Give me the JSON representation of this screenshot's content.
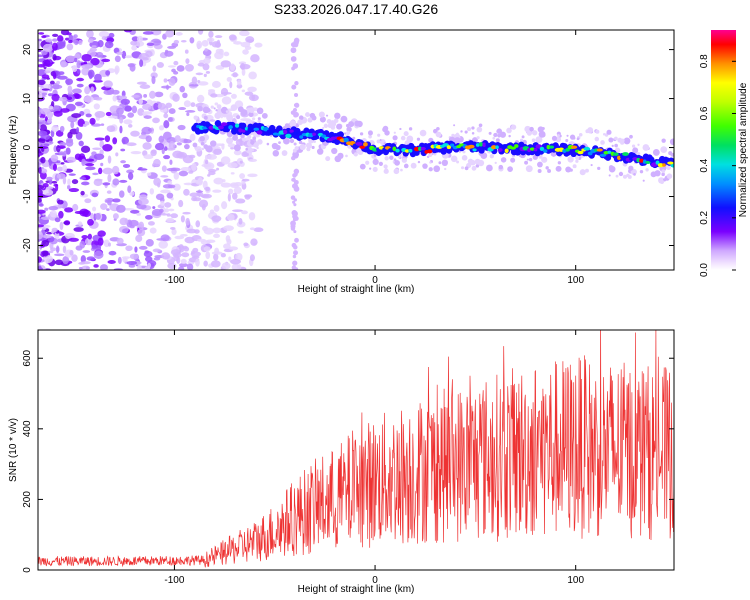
{
  "title": "S233.2026.047.17.40.G26",
  "chart_data": [
    {
      "type": "heatmap",
      "xlabel": "Height of straight line (km)",
      "ylabel": "Frequency (Hz)",
      "xlim": [
        -168,
        149
      ],
      "ylim": [
        -25,
        24
      ],
      "xticks": [
        -100,
        0,
        100
      ],
      "xtick_labels": [
        "-100",
        "0",
        "100"
      ],
      "yticks": [
        -20,
        -10,
        0,
        10,
        20
      ],
      "ytick_labels": [
        "-20",
        "-10",
        "0",
        "10",
        "20"
      ],
      "colorbar": {
        "label": "Normalized spectral amplitude",
        "range": [
          0.0,
          0.92
        ],
        "ticks": [
          0.0,
          0.2,
          0.4,
          0.6,
          0.8
        ],
        "tick_labels": [
          "0.0",
          "0.2",
          "0.4",
          "0.6",
          "0.8"
        ]
      },
      "ridge": {
        "description_points_km": [
          -90,
          -75,
          -60,
          -45,
          -30,
          -15,
          0,
          20,
          40,
          60,
          80,
          100,
          120,
          140,
          149
        ],
        "frequency_hz": [
          4,
          4.2,
          3.8,
          3,
          2.5,
          1.8,
          -0.5,
          -0.5,
          0.2,
          0,
          -0.3,
          -0.5,
          -1.5,
          -3,
          -3.2
        ]
      }
    },
    {
      "type": "line",
      "xlabel": "Height of straight line (km)",
      "ylabel": "SNR (10 * v/v)",
      "xlim": [
        -168,
        149
      ],
      "ylim": [
        0,
        680
      ],
      "xticks": [
        -100,
        0,
        100
      ],
      "xtick_labels": [
        "-100",
        "0",
        "100"
      ],
      "yticks": [
        0,
        200,
        400,
        600
      ],
      "ytick_labels": [
        "0",
        "200",
        "400",
        "600"
      ],
      "color": "#ee3333",
      "envelope": {
        "x": [
          -168,
          -120,
          -85,
          -75,
          -60,
          -50,
          -40,
          -30,
          -20,
          -10,
          0,
          20,
          40,
          60,
          80,
          100,
          120,
          149
        ],
        "y": [
          25,
          25,
          28,
          50,
          80,
          110,
          150,
          180,
          200,
          230,
          250,
          280,
          300,
          320,
          340,
          350,
          340,
          330
        ]
      }
    }
  ]
}
